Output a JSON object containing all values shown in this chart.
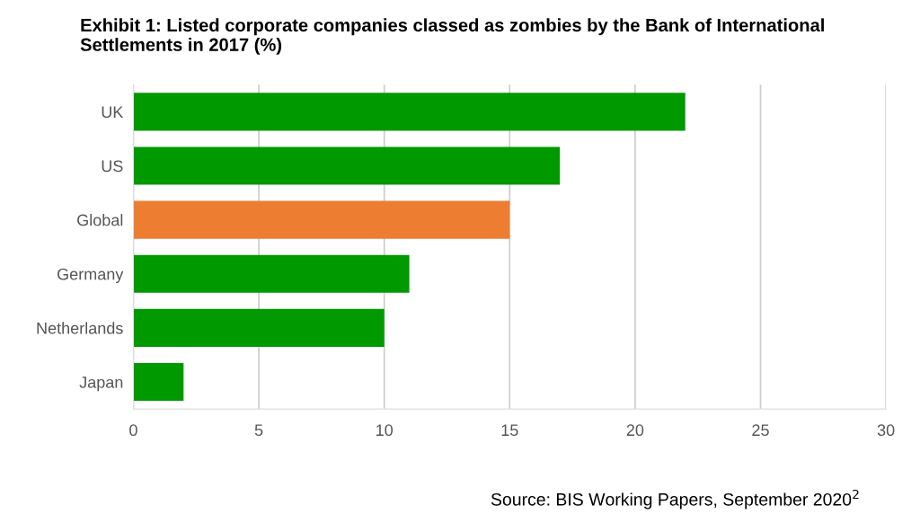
{
  "chart_data": {
    "type": "bar",
    "orientation": "horizontal",
    "title": "Exhibit 1: Listed corporate companies classed as zombies by the Bank of International Settlements in 2017 (%)",
    "categories": [
      "UK",
      "US",
      "Global",
      "Germany",
      "Netherlands",
      "Japan"
    ],
    "values": [
      22,
      17,
      15,
      11,
      10,
      2
    ],
    "colors": [
      "#009900",
      "#009900",
      "#ed7d31",
      "#009900",
      "#009900",
      "#009900"
    ],
    "xlim": [
      0,
      30
    ],
    "xticks": [
      0,
      5,
      10,
      15,
      20,
      25,
      30
    ],
    "grid": "x",
    "annotations": [
      "Source: BIS Working Papers, September 2020$^{2}$"
    ]
  }
}
